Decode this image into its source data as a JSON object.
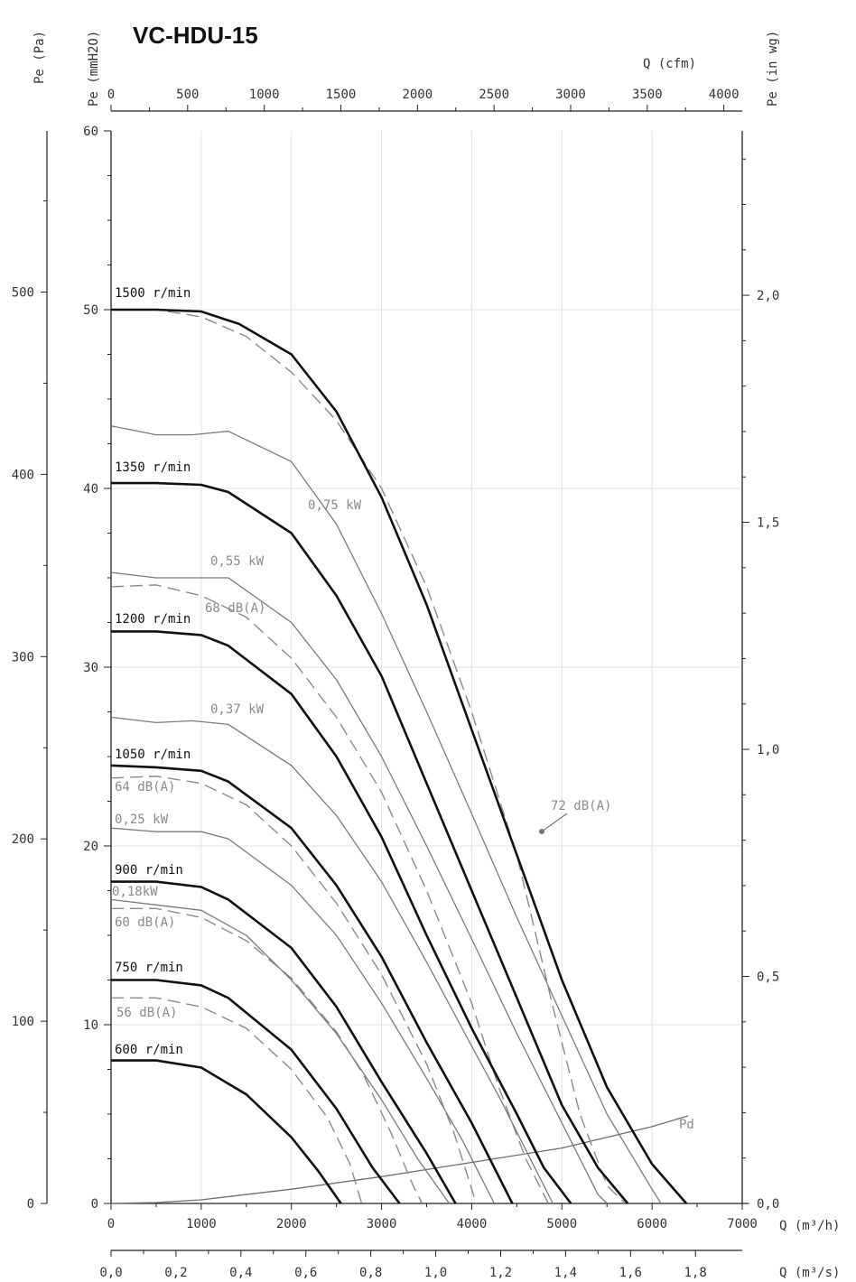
{
  "chart_data": {
    "type": "line",
    "title": "VC-HDU-15",
    "axes": {
      "x_main": {
        "label": "Q (m³/h)",
        "ticks": [
          "0",
          "1000",
          "2000",
          "3000",
          "4000",
          "5000",
          "6000",
          "7000"
        ],
        "range": [
          0,
          7000
        ]
      },
      "x_cfm": {
        "label": "Q (cfm)",
        "ticks": [
          "0",
          "500",
          "1000",
          "1500",
          "2000",
          "2500",
          "3000",
          "3500",
          "4000"
        ],
        "range": [
          0,
          4120
        ]
      },
      "x_m3s": {
        "label": "Q (m³/s)",
        "ticks": [
          "0,0",
          "0,2",
          "0,4",
          "0,6",
          "0,8",
          "1,0",
          "1,2",
          "1,4",
          "1,6",
          "1,8"
        ],
        "range": [
          0,
          1.944
        ]
      },
      "y_mmH2O": {
        "label": "Pe (mmH2O)",
        "ticks": [
          "0",
          "10",
          "20",
          "30",
          "40",
          "50",
          "60"
        ],
        "range": [
          0,
          60
        ]
      },
      "y_Pa": {
        "label": "Pe (Pa)",
        "ticks": [
          "0",
          "100",
          "200",
          "300",
          "400",
          "500"
        ],
        "range": [
          0,
          588.4
        ]
      },
      "y_inwg": {
        "label": "Pe (in wg)",
        "ticks": [
          "0,0",
          "0,5",
          "1,0",
          "1,5",
          "2,0"
        ],
        "range": [
          0,
          2.362
        ]
      }
    },
    "grid": true,
    "speed_curves": [
      {
        "label": "1500 r/min",
        "points": [
          [
            0,
            50
          ],
          [
            500,
            50
          ],
          [
            1000,
            49.9
          ],
          [
            1420,
            49.2
          ],
          [
            2000,
            47.5
          ],
          [
            2500,
            44.3
          ],
          [
            3000,
            39.5
          ],
          [
            3500,
            33.5
          ],
          [
            4000,
            26.5
          ],
          [
            4500,
            19.5
          ],
          [
            5000,
            12.5
          ],
          [
            5500,
            6.5
          ],
          [
            6000,
            2.2
          ],
          [
            6380,
            0
          ]
        ]
      },
      {
        "label": "1350 r/min",
        "points": [
          [
            0,
            40.3
          ],
          [
            500,
            40.3
          ],
          [
            1000,
            40.2
          ],
          [
            1300,
            39.8
          ],
          [
            2000,
            37.5
          ],
          [
            2500,
            34
          ],
          [
            3000,
            29.5
          ],
          [
            3500,
            23.5
          ],
          [
            4000,
            17.5
          ],
          [
            4500,
            11.5
          ],
          [
            5000,
            5.5
          ],
          [
            5400,
            2
          ],
          [
            5730,
            0
          ]
        ]
      },
      {
        "label": "1200 r/min",
        "points": [
          [
            0,
            32
          ],
          [
            500,
            32
          ],
          [
            1000,
            31.8
          ],
          [
            1300,
            31.2
          ],
          [
            2000,
            28.5
          ],
          [
            2500,
            25
          ],
          [
            3000,
            20.5
          ],
          [
            3500,
            15
          ],
          [
            4000,
            9.8
          ],
          [
            4500,
            5
          ],
          [
            4800,
            2
          ],
          [
            5100,
            0
          ]
        ]
      },
      {
        "label": "1050 r/min",
        "points": [
          [
            0,
            24.5
          ],
          [
            500,
            24.4
          ],
          [
            1000,
            24.2
          ],
          [
            1300,
            23.6
          ],
          [
            2000,
            21
          ],
          [
            2500,
            17.8
          ],
          [
            3000,
            13.8
          ],
          [
            3500,
            9
          ],
          [
            4000,
            4.5
          ],
          [
            4450,
            0
          ]
        ]
      },
      {
        "label": "900 r/min",
        "points": [
          [
            0,
            18
          ],
          [
            500,
            18
          ],
          [
            1000,
            17.7
          ],
          [
            1300,
            17
          ],
          [
            2000,
            14.3
          ],
          [
            2500,
            11
          ],
          [
            3000,
            6.8
          ],
          [
            3500,
            2.8
          ],
          [
            3820,
            0
          ]
        ]
      },
      {
        "label": "750 r/min",
        "points": [
          [
            0,
            12.5
          ],
          [
            500,
            12.5
          ],
          [
            1000,
            12.2
          ],
          [
            1300,
            11.5
          ],
          [
            2000,
            8.6
          ],
          [
            2500,
            5.3
          ],
          [
            2900,
            2
          ],
          [
            3200,
            0
          ]
        ]
      },
      {
        "label": "600 r/min",
        "points": [
          [
            0,
            8
          ],
          [
            500,
            8
          ],
          [
            1000,
            7.6
          ],
          [
            1500,
            6.1
          ],
          [
            2000,
            3.7
          ],
          [
            2300,
            1.8
          ],
          [
            2550,
            0
          ]
        ]
      }
    ],
    "power_curves": [
      {
        "label": "0,75 kW",
        "points": [
          [
            0,
            43.5
          ],
          [
            500,
            43
          ],
          [
            900,
            43
          ],
          [
            1300,
            43.2
          ],
          [
            2000,
            41.5
          ],
          [
            2500,
            38
          ],
          [
            3000,
            33
          ],
          [
            3500,
            27.5
          ],
          [
            4000,
            21.8
          ],
          [
            4500,
            16
          ],
          [
            5000,
            10.5
          ],
          [
            5500,
            5
          ],
          [
            6000,
            0.8
          ],
          [
            6100,
            0
          ]
        ]
      },
      {
        "label": "0,55 kW",
        "points": [
          [
            0,
            35.3
          ],
          [
            500,
            35
          ],
          [
            900,
            35
          ],
          [
            1300,
            35
          ],
          [
            2000,
            32.5
          ],
          [
            2500,
            29.3
          ],
          [
            3000,
            25
          ],
          [
            3500,
            20
          ],
          [
            4000,
            14.8
          ],
          [
            4500,
            9.5
          ],
          [
            5000,
            4.5
          ],
          [
            5400,
            0.5
          ],
          [
            5500,
            0
          ]
        ]
      },
      {
        "label": "0,37 kW",
        "points": [
          [
            0,
            27.2
          ],
          [
            500,
            26.9
          ],
          [
            900,
            27
          ],
          [
            1300,
            26.8
          ],
          [
            2000,
            24.5
          ],
          [
            2500,
            21.7
          ],
          [
            3000,
            18
          ],
          [
            3500,
            13.5
          ],
          [
            4000,
            8.8
          ],
          [
            4300,
            6
          ],
          [
            4600,
            3
          ],
          [
            4900,
            0
          ]
        ]
      },
      {
        "label": "0,25 kW",
        "points": [
          [
            0,
            21
          ],
          [
            500,
            20.8
          ],
          [
            1000,
            20.8
          ],
          [
            1300,
            20.4
          ],
          [
            2000,
            17.8
          ],
          [
            2500,
            15
          ],
          [
            3000,
            11.2
          ],
          [
            3500,
            7
          ],
          [
            3900,
            3.5
          ],
          [
            4200,
            0.5
          ],
          [
            4250,
            0
          ]
        ]
      },
      {
        "label": "0,18kW",
        "points": [
          [
            0,
            17
          ],
          [
            500,
            16.7
          ],
          [
            1000,
            16.4
          ],
          [
            1500,
            15
          ],
          [
            2000,
            12.5
          ],
          [
            2500,
            9.5
          ],
          [
            3000,
            5.8
          ],
          [
            3400,
            2.5
          ],
          [
            3750,
            0
          ]
        ]
      }
    ],
    "noise_curves": [
      {
        "label": "72 dB(A)",
        "points": [
          [
            0,
            50
          ],
          [
            500,
            50
          ],
          [
            1000,
            49.6
          ],
          [
            1500,
            48.5
          ],
          [
            2000,
            46.5
          ],
          [
            2500,
            43.8
          ],
          [
            3000,
            40
          ],
          [
            3500,
            34.5
          ],
          [
            4000,
            27.5
          ],
          [
            4500,
            19.5
          ],
          [
            4900,
            11
          ],
          [
            5200,
            5
          ],
          [
            5500,
            1
          ],
          [
            5700,
            0
          ]
        ]
      },
      {
        "label": "68 dB(A)",
        "points": [
          [
            0,
            34.5
          ],
          [
            500,
            34.6
          ],
          [
            1000,
            34
          ],
          [
            1500,
            32.8
          ],
          [
            2000,
            30.5
          ],
          [
            2500,
            27.2
          ],
          [
            3000,
            23
          ],
          [
            3500,
            17.5
          ],
          [
            4000,
            11.2
          ],
          [
            4300,
            6.5
          ],
          [
            4600,
            2.5
          ],
          [
            4850,
            0
          ]
        ]
      },
      {
        "label": "64 dB(A)",
        "points": [
          [
            0,
            23.8
          ],
          [
            500,
            23.9
          ],
          [
            1000,
            23.5
          ],
          [
            1500,
            22.3
          ],
          [
            2000,
            20
          ],
          [
            2500,
            16.8
          ],
          [
            3000,
            12.8
          ],
          [
            3500,
            7.8
          ],
          [
            3800,
            4
          ],
          [
            4050,
            0
          ]
        ]
      },
      {
        "label": "60 dB(A)",
        "points": [
          [
            0,
            16.5
          ],
          [
            500,
            16.5
          ],
          [
            1000,
            16
          ],
          [
            1500,
            14.7
          ],
          [
            2000,
            12.6
          ],
          [
            2500,
            9.6
          ],
          [
            2800,
            7.2
          ],
          [
            3100,
            4
          ],
          [
            3350,
            1
          ],
          [
            3450,
            0
          ]
        ]
      },
      {
        "label": "56 dB(A)",
        "points": [
          [
            0,
            11.5
          ],
          [
            500,
            11.5
          ],
          [
            1000,
            11
          ],
          [
            1500,
            9.8
          ],
          [
            2000,
            7.5
          ],
          [
            2400,
            4.8
          ],
          [
            2650,
            2.2
          ],
          [
            2780,
            0
          ]
        ]
      }
    ],
    "dynamic_pressure": {
      "label": "Pd",
      "points": [
        [
          0,
          0
        ],
        [
          500,
          0.05
        ],
        [
          1000,
          0.2
        ],
        [
          2000,
          0.8
        ],
        [
          3000,
          1.5
        ],
        [
          4000,
          2.3
        ],
        [
          5000,
          3.1
        ],
        [
          6000,
          4.3
        ],
        [
          6400,
          4.9
        ]
      ]
    }
  }
}
